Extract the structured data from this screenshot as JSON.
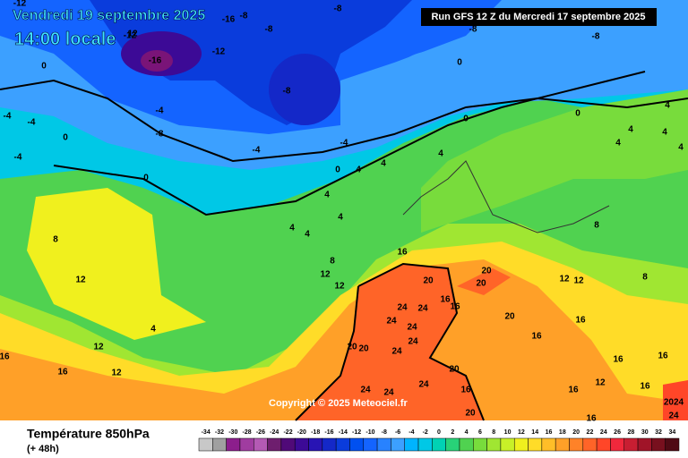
{
  "header": {
    "title": "Vendredi 19 septembre 2025",
    "time": "14:00 locale",
    "run": "Run GFS 12 Z du Mercredi 17 septembre 2025"
  },
  "copyright": "Copyright © 2025 Meteociel.fr",
  "footer": {
    "title": "Température 850hPa",
    "subtitle": "(+ 48h)"
  },
  "scale": {
    "values": [
      -34,
      -32,
      -30,
      -28,
      -26,
      -24,
      -22,
      -20,
      -18,
      -16,
      -14,
      -12,
      -10,
      -8,
      -6,
      -4,
      -2,
      0,
      2,
      4,
      6,
      8,
      10,
      12,
      14,
      16,
      18,
      20,
      22,
      24,
      26,
      28,
      30,
      32,
      34
    ],
    "colors": [
      "#c8c8c8",
      "#a0a0a0",
      "#8c1e8c",
      "#a03ca0",
      "#b45ab4",
      "#6e1e6e",
      "#500a78",
      "#3c0a96",
      "#2814b4",
      "#1428c8",
      "#0a3cdc",
      "#0050f0",
      "#1464ff",
      "#2882ff",
      "#3ca0ff",
      "#00b4ff",
      "#00c8e6",
      "#00d2b4",
      "#28d278",
      "#50d250",
      "#78dc3c",
      "#a0e632",
      "#c8f028",
      "#f0f01e",
      "#ffdc28",
      "#ffbe28",
      "#ffa028",
      "#ff8228",
      "#ff6428",
      "#ff4628",
      "#f0283c",
      "#c81e32",
      "#a01428",
      "#78101e",
      "#500a14"
    ]
  },
  "contour_labels": [
    "-12",
    "12",
    "-16",
    "-8",
    "-8",
    "-8",
    "-12",
    "-16",
    "-12",
    "-8",
    "-8",
    "-8",
    "0",
    "0",
    "-4",
    "-8",
    "-4",
    "-4",
    "0",
    "0",
    "0",
    "4",
    "-4",
    "-4",
    "-4",
    "0",
    "0",
    "4",
    "4",
    "4",
    "4",
    "4",
    "4",
    "8",
    "8",
    "12",
    "12",
    "12",
    "4",
    "16",
    "16",
    "12",
    "12",
    "16",
    "20",
    "20",
    "20",
    "24",
    "24",
    "16",
    "16",
    "24",
    "24",
    "20",
    "20",
    "20",
    "24",
    "24",
    "16",
    "20",
    "16",
    "24",
    "24",
    "24",
    "20",
    "12",
    "12",
    "8",
    "8",
    "4",
    "4",
    "4",
    "4",
    "4",
    "16",
    "16",
    "16",
    "16",
    "16",
    "12",
    "16",
    "2024",
    "24"
  ]
}
